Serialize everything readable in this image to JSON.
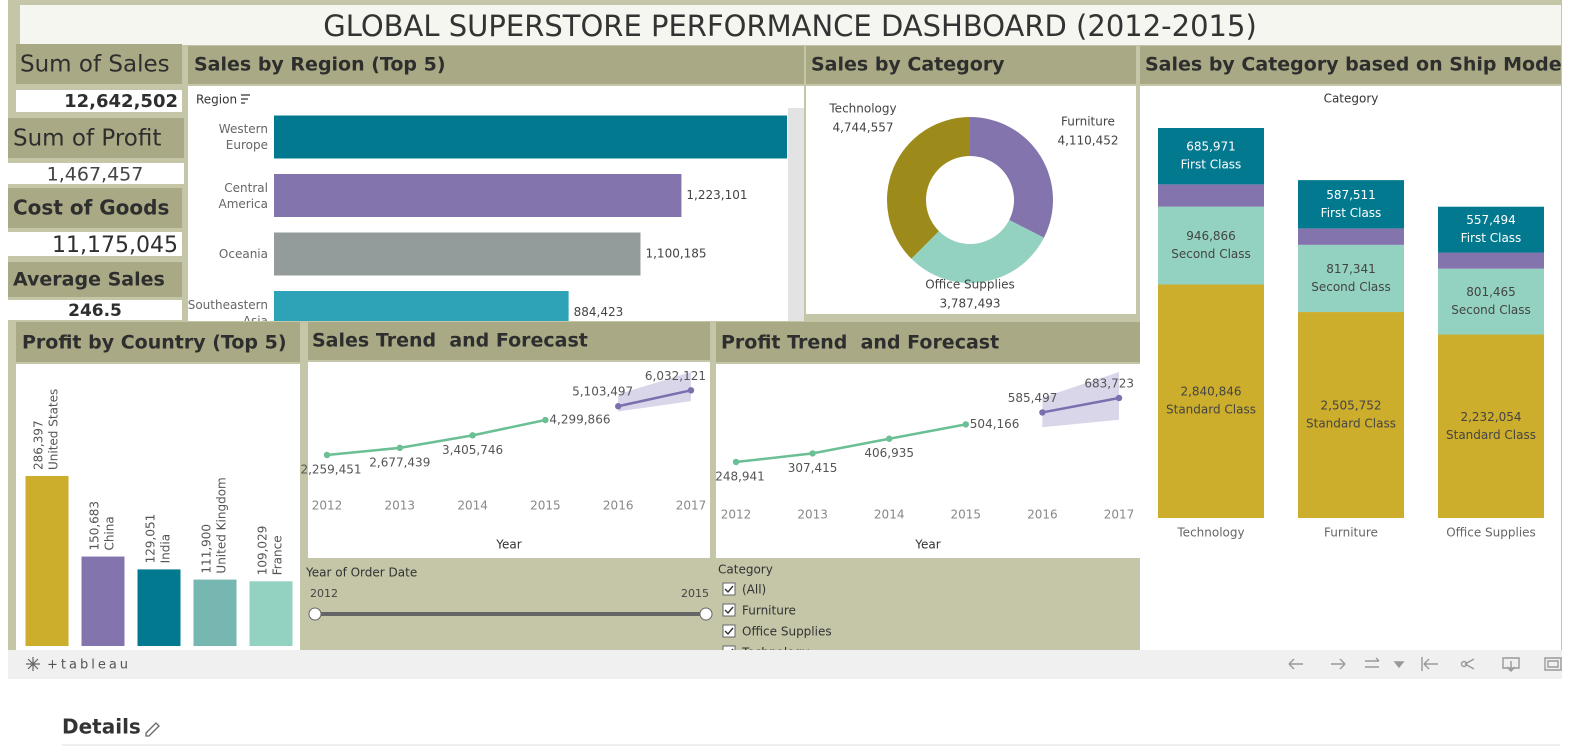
{
  "title": "GLOBAL SUPERSTORE PERFORMANCE DASHBOARD (2012-2015)",
  "kpis": [
    {
      "label": "Sum of Sales",
      "value": "12,642,502"
    },
    {
      "label": "Sum of Profit",
      "value": "1,467,457"
    },
    {
      "label": "Cost of Goods",
      "value": "11,175,045"
    },
    {
      "label": "Average Sales",
      "value": "246.5"
    }
  ],
  "chart_data": [
    {
      "type": "barh",
      "title": "Sales by Region (Top 5)",
      "axis_label": "Region",
      "categories": [
        "Western Europe",
        "Central America",
        "Oceania",
        "Southeastern Asia"
      ],
      "values": [
        1540000,
        1223101,
        1100185,
        884423
      ],
      "value_labels": [
        null,
        "1,223,101",
        "1,100,185",
        "884,423"
      ],
      "colors": [
        "#03798f",
        "#8474ad",
        "#949b9b",
        "#2ea2b6"
      ]
    },
    {
      "type": "pie",
      "donut": true,
      "title": "Sales by Category",
      "categories": [
        "Technology",
        "Furniture",
        "Office Supplies"
      ],
      "values": [
        4744557,
        4110452,
        3787493
      ],
      "value_labels": [
        "4,744,557",
        "4,110,452",
        "3,787,493"
      ],
      "colors": [
        "#9c8a1a",
        "#8474ad",
        "#93d2c0"
      ]
    },
    {
      "type": "bar",
      "stacked": true,
      "title": "Sales by Category based on Ship Mode",
      "axis_label": "Category",
      "categories": [
        "Technology",
        "Furniture",
        "Office Supplies"
      ],
      "series": [
        {
          "name": "Standard Class",
          "color": "#cdae2c",
          "text_color": "#444",
          "values": [
            2840846,
            2505752,
            2232054
          ],
          "value_labels": [
            "2,840,846",
            "2,505,752",
            "2,232,054"
          ]
        },
        {
          "name": "Second Class",
          "color": "#93d2c0",
          "text_color": "#444",
          "values": [
            946866,
            817341,
            801465
          ],
          "value_labels": [
            "946,866",
            "817,341",
            "801,465"
          ]
        },
        {
          "color": "#8474ad",
          "values": [
            271000,
            200000,
            196000
          ]
        },
        {
          "name": "First Class",
          "color": "#03798f",
          "text_color": "#ffffff",
          "values": [
            685971,
            587511,
            557494
          ],
          "value_labels": [
            "685,971",
            "587,511",
            "557,494"
          ]
        }
      ]
    },
    {
      "type": "bar",
      "title": "Profit by Country (Top 5)",
      "categories": [
        "United States",
        "China",
        "India",
        "United Kingdom",
        "France"
      ],
      "values": [
        286397,
        150683,
        129051,
        111900,
        109029
      ],
      "value_labels": [
        "286,397",
        "150,683",
        "129,051",
        "111,900",
        "109,029"
      ],
      "colors": [
        "#cdae2c",
        "#8474ad",
        "#03798f",
        "#76b7b2",
        "#93d2c0"
      ]
    },
    {
      "type": "line",
      "title": "Sales Trend  and Forecast",
      "xlabel": "Year",
      "x": [
        2012,
        2013,
        2014,
        2015,
        2016,
        2017
      ],
      "xticks": [
        2012,
        2013,
        2014,
        2015,
        2016,
        2017
      ],
      "series": [
        {
          "color": "#6abf95",
          "values": [
            2259451,
            2677439,
            3405746,
            4299866,
            null,
            null
          ],
          "value_labels": [
            "2,259,451",
            "2,677,439",
            "3,405,746",
            "4,299,866",
            null,
            null
          ]
        },
        {
          "color": "#7b6fae",
          "values": [
            null,
            null,
            null,
            null,
            5103497,
            6032121
          ],
          "value_labels": [
            null,
            null,
            null,
            null,
            "5,103,497",
            "6,032,121"
          ],
          "lower": [
            null,
            null,
            null,
            null,
            4800000,
            5400000
          ],
          "upper": [
            null,
            null,
            null,
            null,
            5800000,
            7100000
          ]
        }
      ]
    },
    {
      "type": "line",
      "title": "Profit Trend  and Forecast",
      "xlabel": "Year",
      "x": [
        2012,
        2013,
        2014,
        2015,
        2016,
        2017
      ],
      "xticks": [
        2012,
        2013,
        2014,
        2015,
        2016,
        2017
      ],
      "series": [
        {
          "color": "#6abf95",
          "values": [
            248941,
            307415,
            406935,
            504166,
            null,
            null
          ],
          "value_labels": [
            "248,941",
            "307,415",
            "406,935",
            "504,166",
            null,
            null
          ]
        },
        {
          "color": "#7b6fae",
          "values": [
            null,
            null,
            null,
            null,
            585497,
            683723
          ],
          "value_labels": [
            null,
            null,
            null,
            null,
            "585,497",
            "683,723"
          ],
          "lower": [
            null,
            null,
            null,
            null,
            485000,
            536000
          ],
          "upper": [
            null,
            null,
            null,
            null,
            686000,
            860000
          ]
        }
      ]
    }
  ],
  "filters": {
    "year": {
      "label": "Year of Order Date",
      "start": "2012",
      "end": "2015"
    },
    "category": {
      "label": "Category",
      "options": [
        "(All)",
        "Furniture",
        "Office Supplies",
        "Technology"
      ]
    }
  },
  "footer": {
    "brand": "+tableau"
  },
  "details": {
    "heading": "Details"
  }
}
